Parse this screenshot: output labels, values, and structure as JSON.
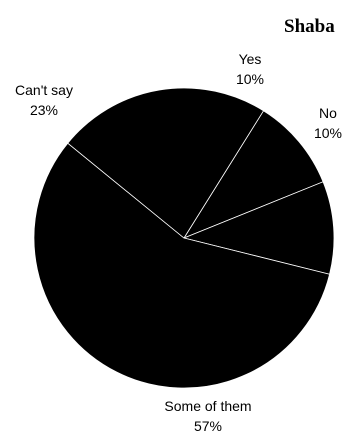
{
  "chart_data": {
    "type": "pie",
    "title": "Shaba",
    "slices": [
      {
        "label": "Yes",
        "value": 10,
        "value_label": "10%"
      },
      {
        "label": "No",
        "value": 10,
        "value_label": "10%"
      },
      {
        "label": "Some of them",
        "value": 57,
        "value_label": "57%"
      },
      {
        "label": "Can't say",
        "value": 23,
        "value_label": "23%"
      }
    ],
    "colors": {
      "fill": "#000000",
      "edge": "#ffffff",
      "text": "#000000"
    },
    "legend": "none"
  }
}
